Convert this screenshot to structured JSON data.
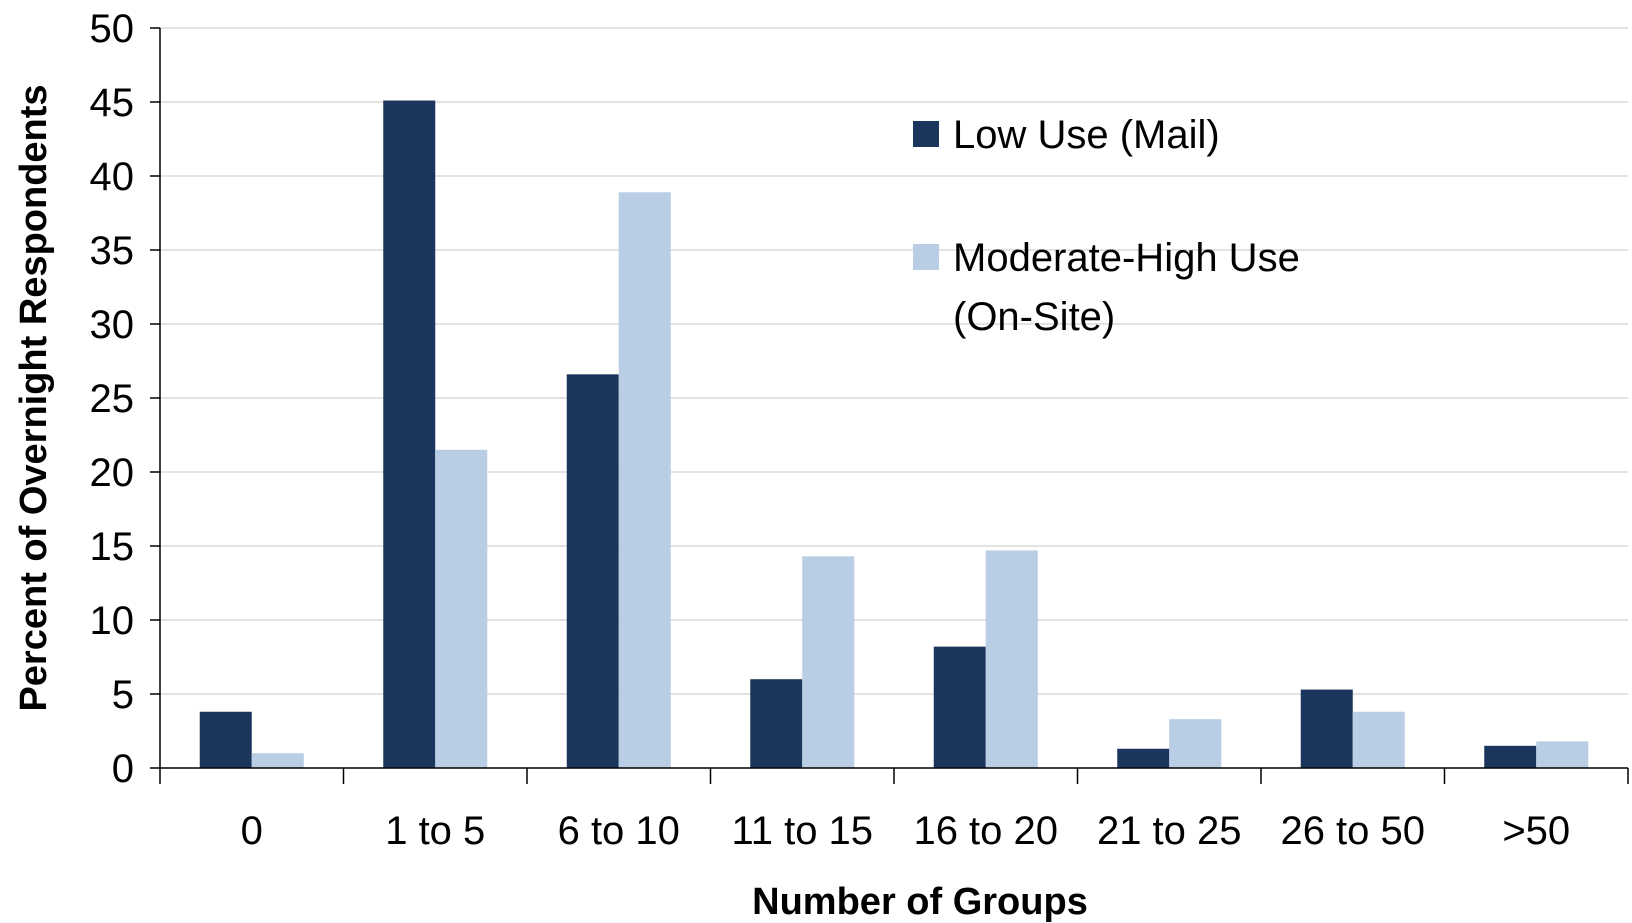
{
  "colors": {
    "low_use": "#1b365d",
    "moderate_high_use": "#b9cde4",
    "gridline": "#d9d9d9",
    "axis": "#000000"
  },
  "chart_data": {
    "type": "bar",
    "title": "",
    "xlabel": "Number of Groups",
    "ylabel": "Percent of Overnight Respondents",
    "categories": [
      "0",
      "1 to 5",
      "6 to 10",
      "11 to 15",
      "16 to 20",
      "21 to 25",
      "26 to 50",
      ">50"
    ],
    "series": [
      {
        "name": "Low Use (Mail)",
        "values": [
          3.8,
          45.1,
          26.6,
          6.0,
          8.2,
          1.3,
          5.3,
          1.5
        ]
      },
      {
        "name": "Moderate-High Use (On-Site)",
        "name_lines": [
          "Moderate-High Use",
          "(On-Site)"
        ],
        "values": [
          1.0,
          21.5,
          38.9,
          14.3,
          14.7,
          3.3,
          3.8,
          1.8
        ]
      }
    ],
    "ylim": [
      0,
      50
    ],
    "yticks": [
      "0",
      "5",
      "10",
      "15",
      "20",
      "25",
      "30",
      "35",
      "40",
      "45",
      "50"
    ],
    "grid": true,
    "legend_position": "top-right"
  }
}
